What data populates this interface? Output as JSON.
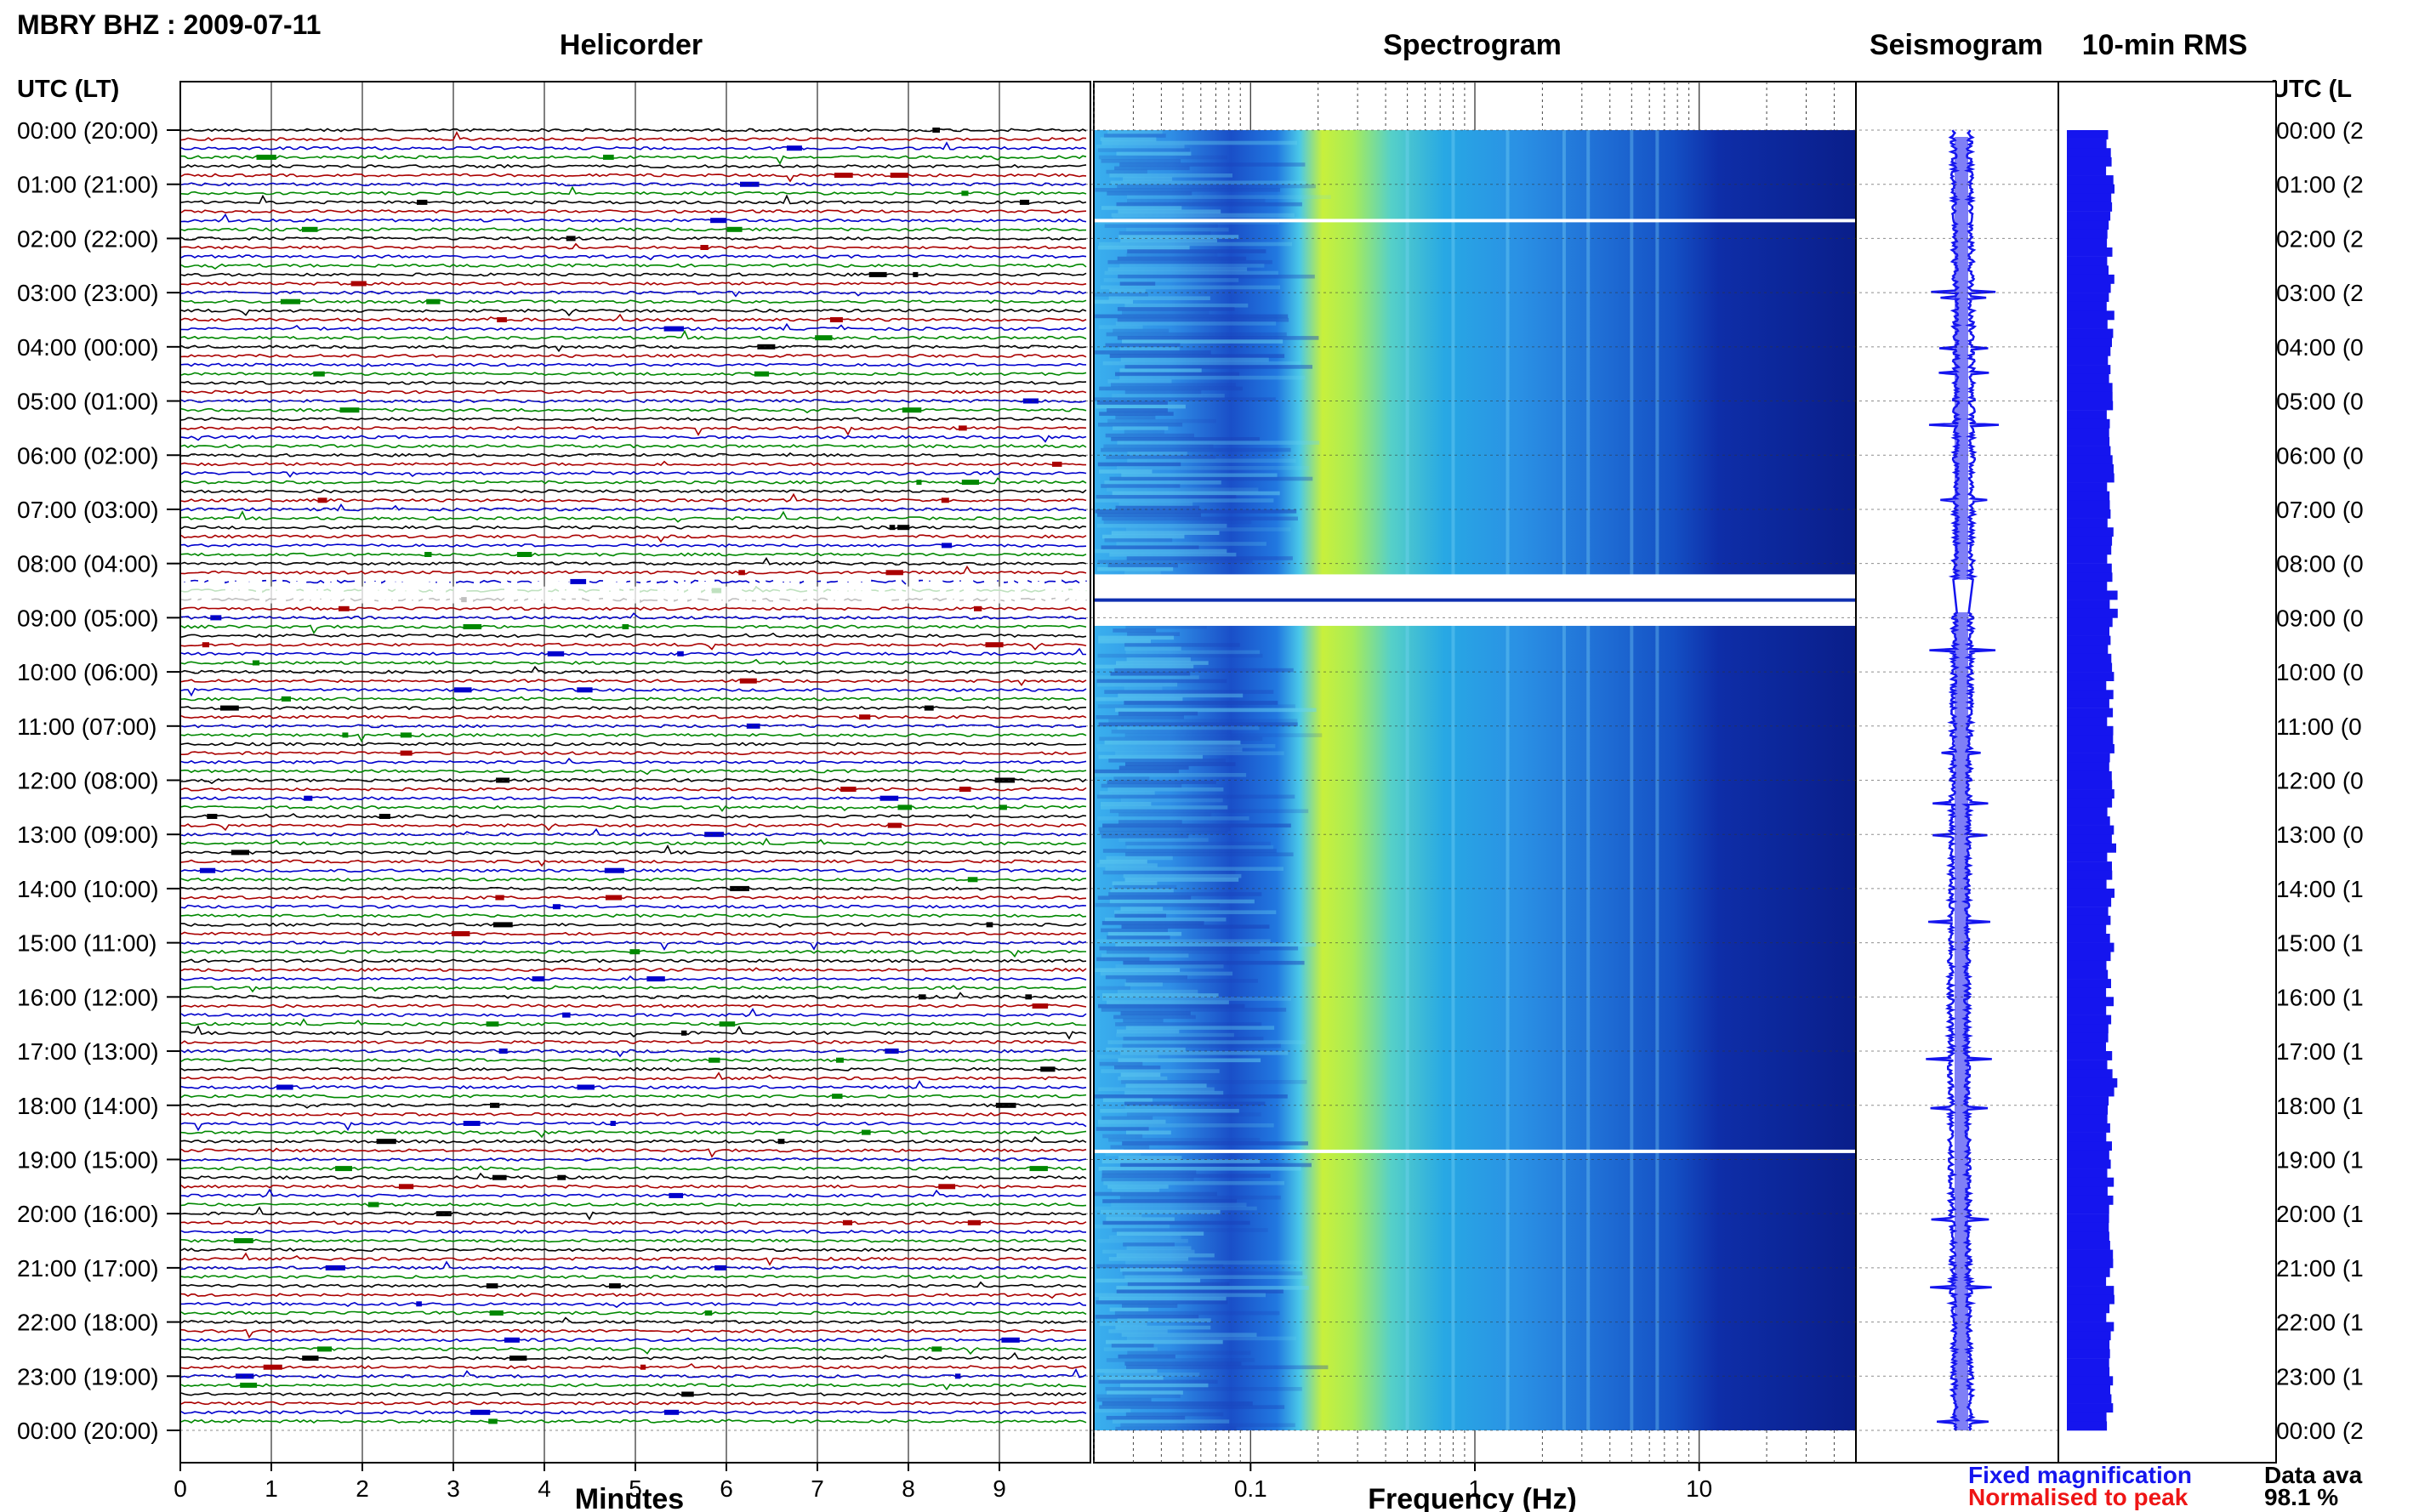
{
  "header": {
    "station": "MBRY BHZ : 2009-07-11",
    "helicorder_title": "Helicorder",
    "spectrogram_title": "Spectrogram",
    "seismogram_title": "Seismogram",
    "rms_title": "10-min RMS",
    "utc_lt_left": "UTC (LT)",
    "utc_lt_right": "UTC (L"
  },
  "time_labels": [
    "00:00 (20:00)",
    "01:00 (21:00)",
    "02:00 (22:00)",
    "03:00 (23:00)",
    "04:00 (00:00)",
    "05:00 (01:00)",
    "06:00 (02:00)",
    "07:00 (03:00)",
    "08:00 (04:00)",
    "09:00 (05:00)",
    "10:00 (06:00)",
    "11:00 (07:00)",
    "12:00 (08:00)",
    "13:00 (09:00)",
    "14:00 (10:00)",
    "15:00 (11:00)",
    "16:00 (12:00)",
    "17:00 (13:00)",
    "18:00 (14:00)",
    "19:00 (15:00)",
    "20:00 (16:00)",
    "21:00 (17:00)",
    "22:00 (18:00)",
    "23:00 (19:00)",
    "00:00 (20:00)"
  ],
  "time_labels_right": [
    "00:00 (2",
    "01:00 (2",
    "02:00 (2",
    "03:00 (2",
    "04:00 (0",
    "05:00 (0",
    "06:00 (0",
    "07:00 (0",
    "08:00 (0",
    "09:00 (0",
    "10:00 (0",
    "11:00 (0",
    "12:00 (0",
    "13:00 (0",
    "14:00 (1",
    "15:00 (1",
    "16:00 (1",
    "17:00 (1",
    "18:00 (1",
    "19:00 (1",
    "20:00 (1",
    "21:00 (1",
    "22:00 (1",
    "23:00 (1",
    "00:00 (2"
  ],
  "footer": {
    "minutes_label": "Minutes",
    "frequency_label": "Frequency (Hz)",
    "legend_fixed": "Fixed magnification",
    "legend_normalised": "Normalised to peak",
    "data_availability_label": "Data ava",
    "data_availability_value": "98.1 %"
  },
  "colors": {
    "fixed": "#1515ee",
    "normalised": "#ee1515",
    "trace_cycle": [
      "#000000",
      "#aa0000",
      "#0000cc",
      "#008800"
    ]
  },
  "chart_data": [
    {
      "type": "line",
      "name": "helicorder",
      "title": "Helicorder",
      "xlabel": "Minutes",
      "xlim": [
        0,
        10
      ],
      "x_ticks": [
        0,
        1,
        2,
        3,
        4,
        5,
        6,
        7,
        8,
        9
      ],
      "ylim_hours": [
        0,
        24
      ],
      "lines_per_hour": 6,
      "minutes_per_line": 10,
      "data_gap_hours": [
        8.33,
        8.83
      ],
      "trace_colors_cycle": [
        "black",
        "red",
        "blue",
        "green"
      ]
    },
    {
      "type": "heatmap",
      "name": "spectrogram",
      "title": "Spectrogram",
      "xlabel": "Frequency (Hz)",
      "x_scale": "log",
      "xlim": [
        0.02,
        50
      ],
      "x_tick_labels": [
        0.1,
        1,
        10
      ],
      "ylim_hours": [
        0,
        24
      ],
      "dominant_band_hz": [
        0.2,
        0.6
      ],
      "gaps_hours": [
        1.67,
        [
          8.2,
          9.15
        ],
        18.85
      ]
    },
    {
      "type": "line",
      "name": "seismogram",
      "title": "Seismogram",
      "ylim_hours": [
        0,
        24
      ],
      "gap_hours": [
        8.3,
        8.9
      ]
    },
    {
      "type": "bar",
      "name": "rms",
      "title": "10-min RMS",
      "ylim_hours": [
        0,
        24
      ],
      "bins_per_hour": 6,
      "legend": [
        "Fixed magnification",
        "Normalised to peak"
      ],
      "data_availability_percent": 98.1
    }
  ]
}
